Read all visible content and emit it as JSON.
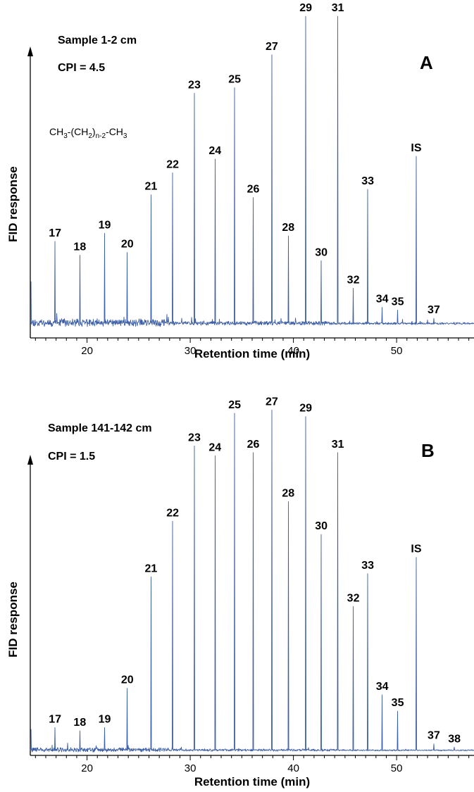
{
  "chart_data": [
    {
      "type": "line",
      "panel": "A",
      "annotations": {
        "sample": "Sample 1-2 cm",
        "cpi": "CPI = 4.5"
      },
      "formula": {
        "base1": "CH",
        "sub1": "3",
        "base2": "-(CH",
        "sub2": "2",
        "base3": ")",
        "sub3": "n-2",
        "base4": "-CH",
        "sub4": "3"
      },
      "xlabel": "Retention time (min)",
      "ylabel": "FID response",
      "xlim": [
        14.5,
        57.5
      ],
      "xticks": [
        20,
        30,
        40,
        50
      ],
      "grid": false,
      "series_color": "#3d5fa6",
      "peaks": [
        {
          "label": "17",
          "x": 16.9,
          "rel": 0.3
        },
        {
          "label": "18",
          "x": 19.3,
          "rel": 0.25
        },
        {
          "label": "19",
          "x": 21.7,
          "rel": 0.33
        },
        {
          "label": "20",
          "x": 23.9,
          "rel": 0.26
        },
        {
          "label": "21",
          "x": 26.2,
          "rel": 0.47
        },
        {
          "label": "22",
          "x": 28.3,
          "rel": 0.55
        },
        {
          "label": "23",
          "x": 30.4,
          "rel": 0.84
        },
        {
          "label": "24",
          "x": 32.4,
          "rel": 0.6
        },
        {
          "label": "25",
          "x": 34.3,
          "rel": 0.86
        },
        {
          "label": "26",
          "x": 36.1,
          "rel": 0.46
        },
        {
          "label": "27",
          "x": 37.9,
          "rel": 0.98
        },
        {
          "label": "28",
          "x": 39.5,
          "rel": 0.32
        },
        {
          "label": "29",
          "x": 41.2,
          "rel": 1.12
        },
        {
          "label": "30",
          "x": 42.7,
          "rel": 0.23
        },
        {
          "label": "31",
          "x": 44.3,
          "rel": 1.12
        },
        {
          "label": "32",
          "x": 45.8,
          "rel": 0.13
        },
        {
          "label": "33",
          "x": 47.2,
          "rel": 0.49
        },
        {
          "label": "34",
          "x": 48.6,
          "rel": 0.06
        },
        {
          "label": "35",
          "x": 50.1,
          "rel": 0.05
        },
        {
          "label": "IS",
          "x": 51.9,
          "rel": 0.61
        },
        {
          "label": "37",
          "x": 53.6,
          "rel": 0.02
        }
      ]
    },
    {
      "type": "line",
      "panel": "B",
      "annotations": {
        "sample": "Sample 141-142 cm",
        "cpi": "CPI = 1.5"
      },
      "xlabel": "Retention time (min)",
      "ylabel": "FID response",
      "xlim": [
        14.5,
        57.5
      ],
      "xticks": [
        20,
        30,
        40,
        50
      ],
      "grid": false,
      "series_color": "#3d5fa6",
      "peaks": [
        {
          "label": "17",
          "x": 16.9,
          "rel": 0.07
        },
        {
          "label": "18",
          "x": 19.3,
          "rel": 0.06
        },
        {
          "label": "19",
          "x": 21.7,
          "rel": 0.07
        },
        {
          "label": "20",
          "x": 23.9,
          "rel": 0.19
        },
        {
          "label": "21",
          "x": 26.2,
          "rel": 0.53
        },
        {
          "label": "22",
          "x": 28.3,
          "rel": 0.7
        },
        {
          "label": "23",
          "x": 30.4,
          "rel": 0.93
        },
        {
          "label": "24",
          "x": 32.4,
          "rel": 0.9
        },
        {
          "label": "25",
          "x": 34.3,
          "rel": 1.03
        },
        {
          "label": "26",
          "x": 36.1,
          "rel": 0.91
        },
        {
          "label": "27",
          "x": 37.9,
          "rel": 1.04
        },
        {
          "label": "28",
          "x": 39.5,
          "rel": 0.76
        },
        {
          "label": "29",
          "x": 41.2,
          "rel": 1.02
        },
        {
          "label": "30",
          "x": 42.7,
          "rel": 0.66
        },
        {
          "label": "31",
          "x": 44.3,
          "rel": 0.91
        },
        {
          "label": "32",
          "x": 45.8,
          "rel": 0.44
        },
        {
          "label": "33",
          "x": 47.2,
          "rel": 0.54
        },
        {
          "label": "34",
          "x": 48.6,
          "rel": 0.17
        },
        {
          "label": "35",
          "x": 50.1,
          "rel": 0.12
        },
        {
          "label": "IS",
          "x": 51.9,
          "rel": 0.59
        },
        {
          "label": "37",
          "x": 53.6,
          "rel": 0.02
        },
        {
          "label": "38",
          "x": 55.6,
          "rel": 0.01
        }
      ]
    }
  ]
}
